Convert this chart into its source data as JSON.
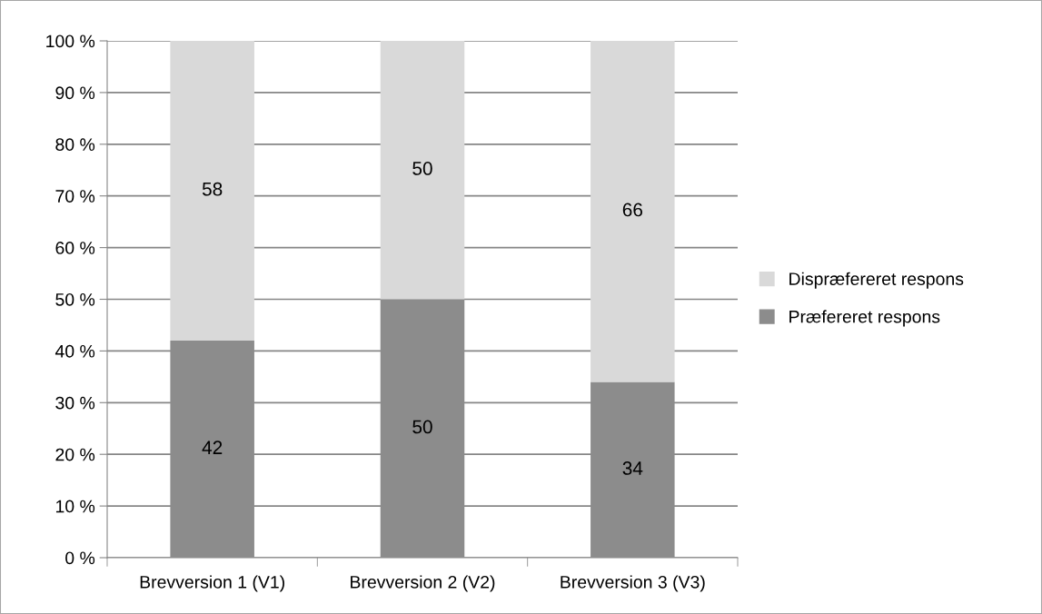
{
  "chart_data": {
    "type": "bar",
    "stacked": true,
    "categories": [
      "Brevversion 1 (V1)",
      "Brevversion 2 (V2)",
      "Brevversion 3 (V3)"
    ],
    "series": [
      {
        "name": "Præfereret respons",
        "color": "#8c8c8c",
        "values": [
          42,
          50,
          34
        ]
      },
      {
        "name": "Dispræfereret respons",
        "color": "#d9d9d9",
        "values": [
          58,
          50,
          66
        ]
      }
    ],
    "ylim": [
      0,
      100
    ],
    "yticks": [
      {
        "value": 0,
        "label": "0 %"
      },
      {
        "value": 10,
        "label": "10 %"
      },
      {
        "value": 20,
        "label": "20 %"
      },
      {
        "value": 30,
        "label": "30 %"
      },
      {
        "value": 40,
        "label": "40 %"
      },
      {
        "value": 50,
        "label": "50 %"
      },
      {
        "value": 60,
        "label": "60 %"
      },
      {
        "value": 70,
        "label": "70 %"
      },
      {
        "value": 80,
        "label": "80 %"
      },
      {
        "value": 90,
        "label": "90 %"
      },
      {
        "value": 100,
        "label": "100 %"
      }
    ],
    "grid": "y",
    "legend": "right",
    "data_labels": true
  }
}
